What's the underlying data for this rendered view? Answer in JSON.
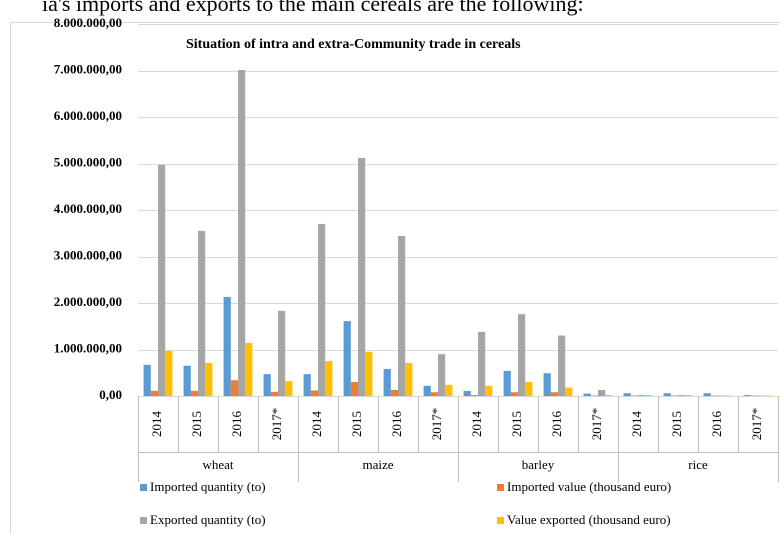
{
  "chart_data": {
    "type": "bar",
    "caption": "ia's imports and exports to the main cereals are the following:",
    "title": "Situation of intra and extra-Community trade in cereals",
    "groups": [
      "wheat",
      "maize",
      "barley",
      "rice"
    ],
    "categories": [
      "2014",
      "2015",
      "2016",
      "2017*",
      "2014",
      "2015",
      "2016",
      "2017*",
      "2014",
      "2015",
      "2016",
      "2017*",
      "2014",
      "2015",
      "2016",
      "2017*"
    ],
    "series": [
      {
        "name": "Imported quantity (to)",
        "color": "#5b9bd5",
        "values": [
          670000,
          650000,
          2130000,
          470000,
          470000,
          1610000,
          580000,
          220000,
          110000,
          540000,
          490000,
          50000,
          60000,
          60000,
          60000,
          20000
        ]
      },
      {
        "name": "Imported value (thousand euro)",
        "color": "#ed7d31",
        "values": [
          110000,
          110000,
          340000,
          90000,
          120000,
          300000,
          130000,
          80000,
          20000,
          80000,
          80000,
          10000,
          10000,
          10000,
          10000,
          10000
        ]
      },
      {
        "name": "Exported quantity (to)",
        "color": "#a5a5a5",
        "values": [
          4970000,
          3550000,
          7010000,
          1830000,
          3700000,
          5120000,
          3440000,
          900000,
          1380000,
          1760000,
          1300000,
          130000,
          20000,
          20000,
          10000,
          10000
        ]
      },
      {
        "name": "Value exported (thousand euro)",
        "color": "#ffc000",
        "values": [
          970000,
          710000,
          1140000,
          320000,
          750000,
          950000,
          710000,
          240000,
          220000,
          300000,
          180000,
          20000,
          20000,
          20000,
          10000,
          10000
        ]
      }
    ],
    "ylim": [
      0,
      8000000
    ],
    "yticks": [
      {
        "value": 0,
        "label": "0,00"
      },
      {
        "value": 1000000,
        "label": "1.000.000,00"
      },
      {
        "value": 2000000,
        "label": "2.000.000,00"
      },
      {
        "value": 3000000,
        "label": "3.000.000,00"
      },
      {
        "value": 4000000,
        "label": "4.000.000,00"
      },
      {
        "value": 5000000,
        "label": "5.000.000,00"
      },
      {
        "value": 6000000,
        "label": "6.000.000,00"
      },
      {
        "value": 7000000,
        "label": "7.000.000,00"
      },
      {
        "value": 8000000,
        "label": "8.000.000,00"
      }
    ],
    "grid": true
  }
}
